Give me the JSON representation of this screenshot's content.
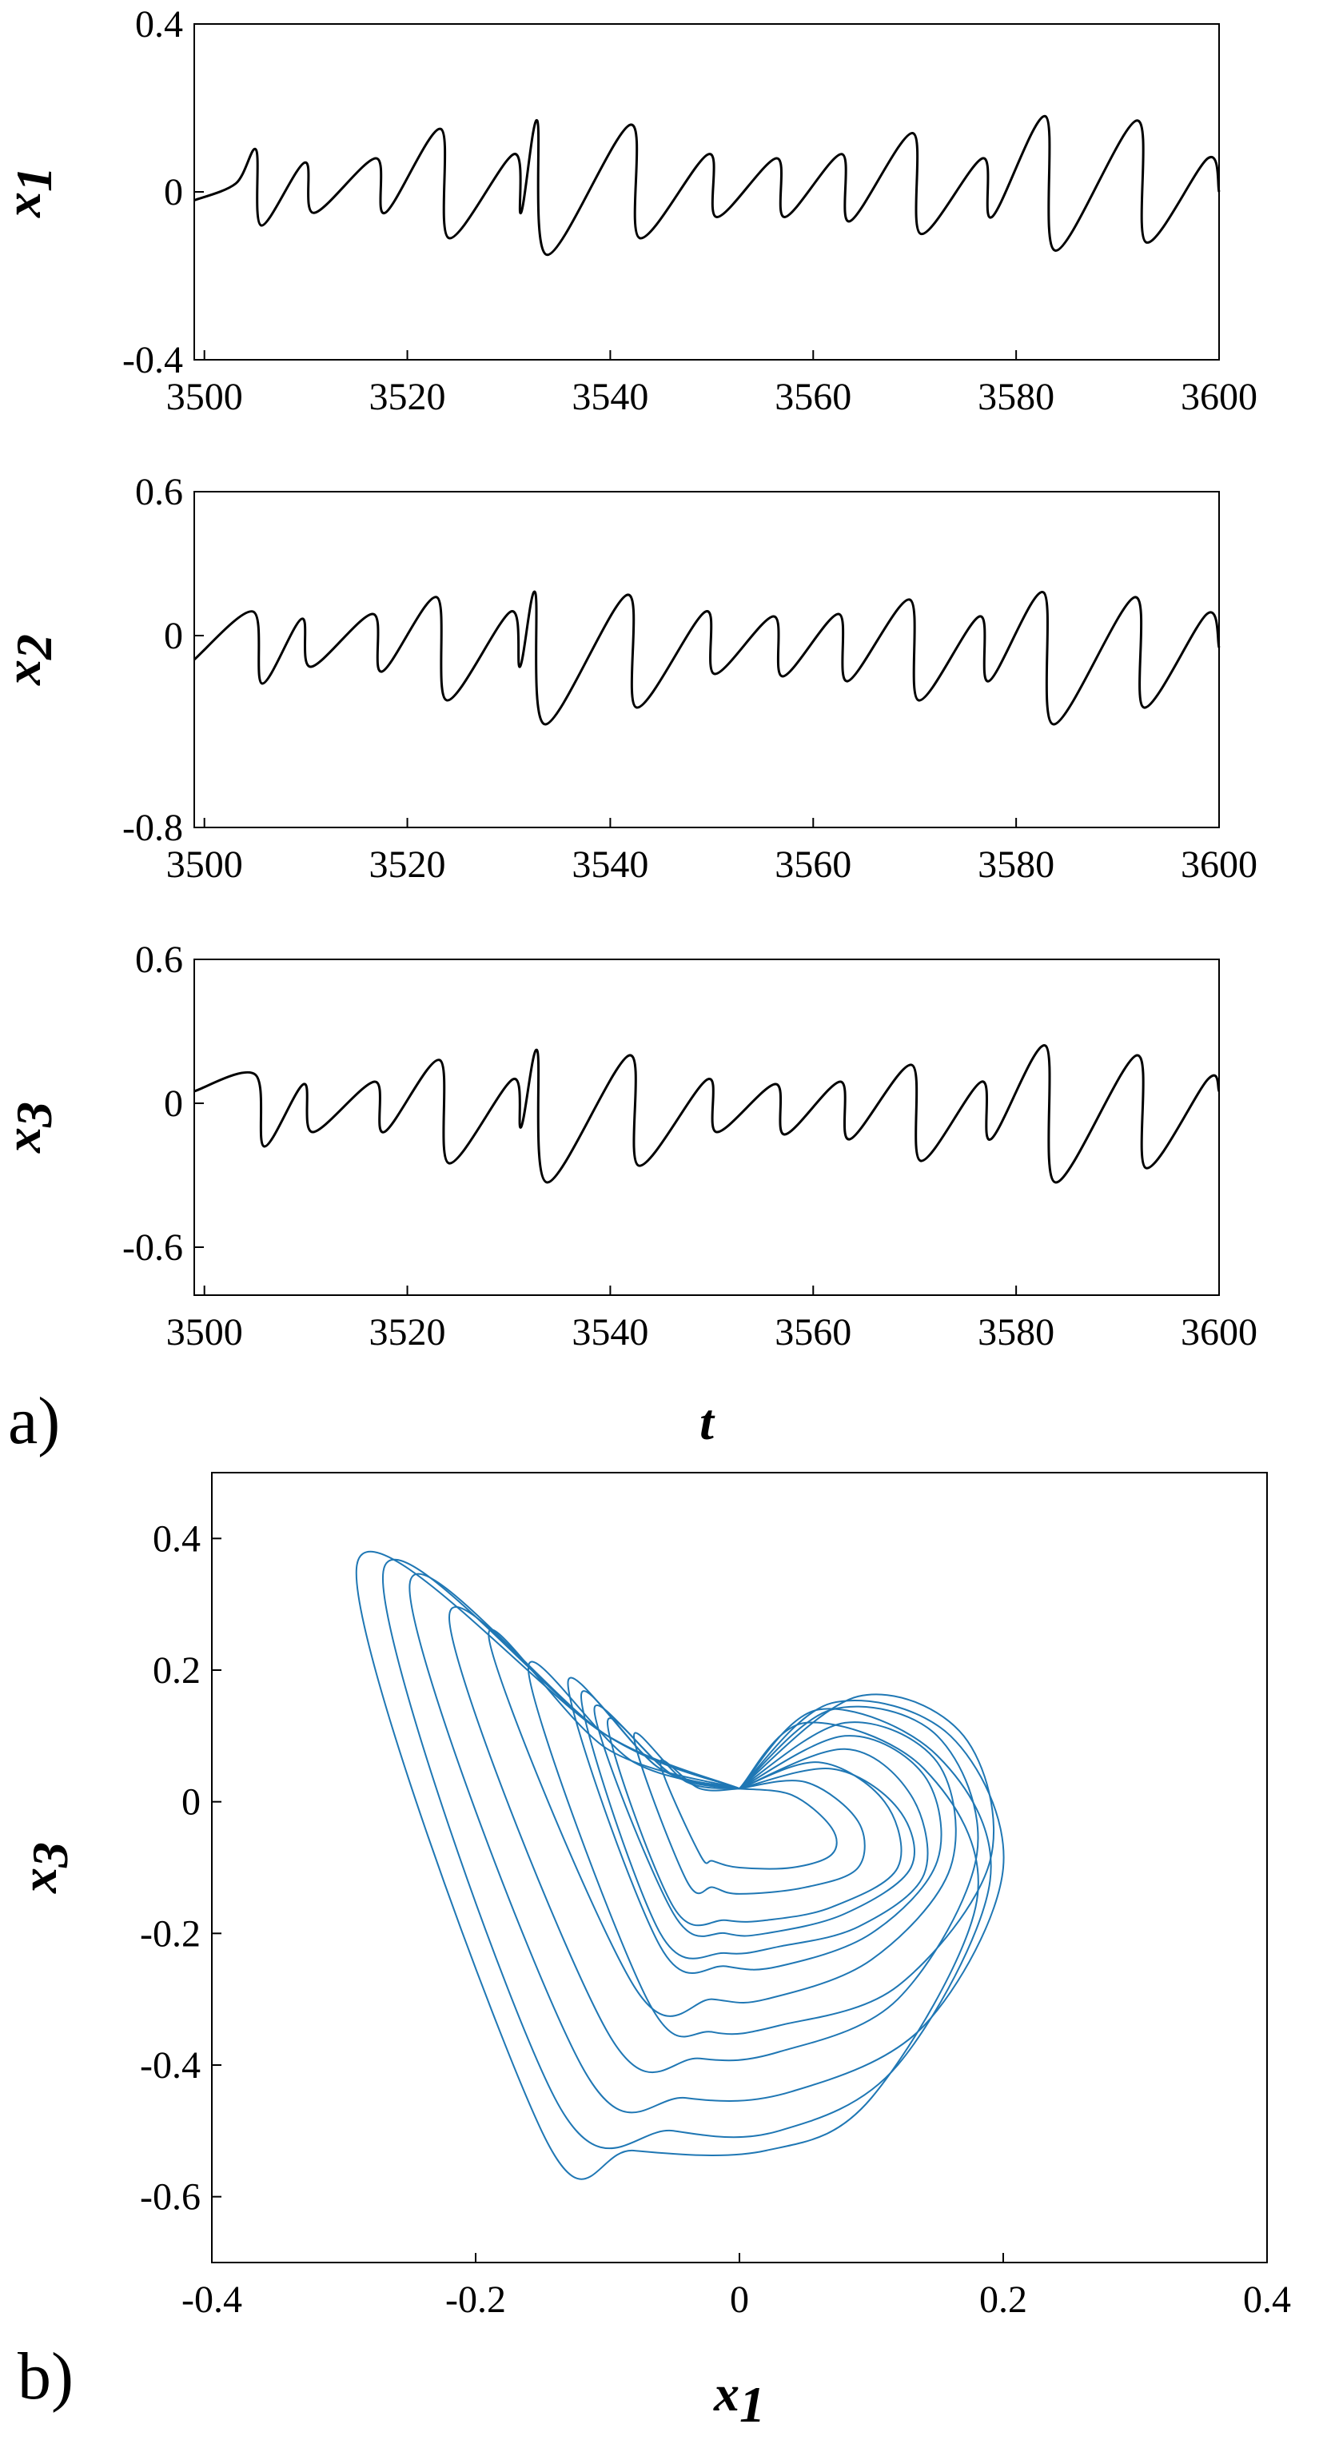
{
  "chart_data": [
    {
      "type": "line",
      "panel": "a)",
      "xlabel": "",
      "ylabel": "x",
      "ylabel_sub": "1",
      "xlim": [
        3499,
        3600
      ],
      "ylim": [
        -0.4,
        0.4
      ],
      "xticks": [
        3500,
        3520,
        3540,
        3560,
        3580,
        3600
      ],
      "yticks": [
        -0.4,
        0,
        0.4
      ],
      "ytick_labels": [
        "-0.4",
        "0",
        "0.4"
      ],
      "color": "#000000",
      "x": [
        3499,
        3503.1,
        3505.1,
        3505.6,
        3509.9,
        3510.8,
        3516.9,
        3517.8,
        3523.3,
        3524.1,
        3530.5,
        3531.2,
        3532.8,
        3533.8,
        3542.0,
        3542.9,
        3549.7,
        3550.5,
        3556.4,
        3557.2,
        3562.8,
        3563.6,
        3569.8,
        3570.6,
        3576.7,
        3577.6,
        3582.9,
        3583.9,
        3591.9,
        3592.8,
        3598.9,
        3600
      ],
      "y": [
        -0.02,
        0.02,
        0.1,
        -0.08,
        0.07,
        -0.05,
        0.08,
        -0.05,
        0.15,
        -0.11,
        0.09,
        -0.05,
        0.17,
        -0.15,
        0.16,
        -0.11,
        0.09,
        -0.06,
        0.08,
        -0.06,
        0.09,
        -0.07,
        0.14,
        -0.1,
        0.08,
        -0.06,
        0.18,
        -0.14,
        0.17,
        -0.12,
        0.08,
        0.0
      ]
    },
    {
      "type": "line",
      "panel": "",
      "xlabel": "",
      "ylabel": "x",
      "ylabel_sub": "2",
      "xlim": [
        3499,
        3600
      ],
      "ylim": [
        -0.8,
        0.6
      ],
      "xticks": [
        3500,
        3520,
        3540,
        3560,
        3580,
        3600
      ],
      "yticks": [
        -0.8,
        0,
        0.6
      ],
      "ytick_labels": [
        "-0.8",
        "0",
        "0.6"
      ],
      "color": "#000000",
      "x": [
        3499,
        3504.8,
        3505.7,
        3509.6,
        3510.5,
        3516.6,
        3517.5,
        3522.9,
        3523.9,
        3530.2,
        3531.1,
        3532.6,
        3533.6,
        3541.7,
        3542.6,
        3549.4,
        3550.3,
        3556.1,
        3557.0,
        3562.5,
        3563.4,
        3569.5,
        3570.4,
        3576.4,
        3577.3,
        3582.7,
        3583.7,
        3591.7,
        3592.6,
        3598.8,
        3600
      ],
      "y": [
        -0.1,
        0.1,
        -0.2,
        0.07,
        -0.13,
        0.09,
        -0.15,
        0.16,
        -0.27,
        0.1,
        -0.13,
        0.18,
        -0.37,
        0.17,
        -0.3,
        0.1,
        -0.16,
        0.08,
        -0.17,
        0.09,
        -0.19,
        0.15,
        -0.27,
        0.08,
        -0.19,
        0.18,
        -0.37,
        0.16,
        -0.3,
        0.09,
        -0.05
      ]
    },
    {
      "type": "line",
      "panel": "",
      "xlabel": "t",
      "ylabel": "x",
      "ylabel_sub": "3",
      "xlim": [
        3499,
        3600
      ],
      "ylim": [
        -0.8,
        0.6
      ],
      "xticks": [
        3500,
        3520,
        3540,
        3560,
        3580,
        3600
      ],
      "yticks": [
        -0.6,
        0,
        0.6
      ],
      "ytick_labels": [
        "-0.6",
        "0",
        "0.6"
      ],
      "color": "#000000",
      "x": [
        3499,
        3505.0,
        3505.9,
        3509.8,
        3510.7,
        3516.8,
        3517.7,
        3523.2,
        3524.1,
        3530.4,
        3531.2,
        3532.8,
        3533.8,
        3541.9,
        3542.8,
        3549.6,
        3550.5,
        3556.3,
        3557.2,
        3562.7,
        3563.6,
        3569.7,
        3570.6,
        3576.6,
        3577.5,
        3582.9,
        3583.9,
        3591.9,
        3592.8,
        3598.9,
        3600
      ],
      "y": [
        0.05,
        0.12,
        -0.18,
        0.08,
        -0.12,
        0.09,
        -0.12,
        0.18,
        -0.25,
        0.1,
        -0.1,
        0.22,
        -0.33,
        0.2,
        -0.26,
        0.1,
        -0.12,
        0.08,
        -0.13,
        0.09,
        -0.15,
        0.16,
        -0.24,
        0.09,
        -0.15,
        0.24,
        -0.33,
        0.2,
        -0.27,
        0.1,
        0.05
      ]
    },
    {
      "type": "line",
      "panel": "b)",
      "xlabel": "x",
      "xlabel_sub": "1",
      "ylabel": "x",
      "ylabel_sub": "3",
      "xlim": [
        -0.4,
        0.4
      ],
      "ylim": [
        -0.7,
        0.5
      ],
      "xticks": [
        -0.4,
        -0.2,
        0,
        0.2,
        0.4
      ],
      "xtick_labels": [
        "-0.4",
        "-0.2",
        "0",
        "0.2",
        "0.4"
      ],
      "yticks": [
        -0.6,
        -0.4,
        -0.2,
        0,
        0.2,
        0.4
      ],
      "ytick_labels": [
        "-0.6",
        "-0.4",
        "-0.2",
        "0",
        "0.2",
        "0.4"
      ],
      "color": "#1f77b4",
      "loops": [
        {
          "x": [
            0.0,
            0.05,
            0.14,
            0.18,
            0.1,
            0.02,
            -0.08,
            -0.15,
            -0.29,
            -0.1,
            0.0
          ],
          "y": [
            0.02,
            0.12,
            0.05,
            -0.15,
            -0.45,
            -0.53,
            -0.53,
            -0.5,
            0.36,
            0.1,
            0.02
          ]
        },
        {
          "x": [
            0.0,
            0.06,
            0.15,
            0.19,
            0.12,
            0.03,
            -0.05,
            -0.14,
            -0.27,
            -0.1,
            0.0
          ],
          "y": [
            0.02,
            0.14,
            0.07,
            -0.12,
            -0.4,
            -0.5,
            -0.5,
            -0.45,
            0.35,
            0.1,
            0.02
          ]
        },
        {
          "x": [
            0.0,
            0.07,
            0.16,
            0.2,
            0.14,
            0.04,
            -0.04,
            -0.12,
            -0.25,
            -0.1,
            0.0
          ],
          "y": [
            0.02,
            0.15,
            0.1,
            -0.1,
            -0.34,
            -0.44,
            -0.45,
            -0.4,
            0.33,
            0.1,
            0.02
          ]
        },
        {
          "x": [
            0.0,
            0.07,
            0.15,
            0.18,
            0.12,
            0.03,
            -0.03,
            -0.1,
            -0.22,
            -0.1,
            0.0
          ],
          "y": [
            0.02,
            0.14,
            0.1,
            -0.08,
            -0.3,
            -0.38,
            -0.39,
            -0.35,
            0.28,
            0.1,
            0.02
          ]
        },
        {
          "x": [
            0.0,
            0.08,
            0.15,
            0.16,
            0.1,
            0.02,
            -0.02,
            -0.08,
            -0.19,
            -0.1,
            0.0
          ],
          "y": [
            0.02,
            0.12,
            0.06,
            -0.1,
            -0.24,
            -0.3,
            -0.3,
            -0.28,
            0.25,
            0.08,
            0.02
          ]
        },
        {
          "x": [
            0.0,
            0.09,
            0.17,
            0.19,
            0.12,
            0.03,
            -0.02,
            -0.07,
            -0.16,
            -0.08,
            0.0
          ],
          "y": [
            0.02,
            0.16,
            0.1,
            -0.09,
            -0.28,
            -0.34,
            -0.35,
            -0.3,
            0.2,
            0.06,
            0.02
          ]
        },
        {
          "x": [
            0.0,
            0.08,
            0.14,
            0.15,
            0.1,
            0.03,
            -0.01,
            -0.06,
            -0.13,
            -0.06,
            0.0
          ],
          "y": [
            0.02,
            0.1,
            0.04,
            -0.09,
            -0.2,
            -0.25,
            -0.25,
            -0.22,
            0.18,
            0.05,
            0.02
          ]
        },
        {
          "x": [
            0.0,
            0.06,
            0.11,
            0.12,
            0.07,
            0.02,
            -0.01,
            -0.05,
            -0.1,
            -0.05,
            0.0
          ],
          "y": [
            0.02,
            0.06,
            0.0,
            -0.1,
            -0.16,
            -0.18,
            -0.18,
            -0.16,
            0.12,
            0.04,
            0.02
          ]
        },
        {
          "x": [
            0.0,
            0.08,
            0.13,
            0.14,
            0.09,
            0.03,
            -0.01,
            -0.06,
            -0.12,
            -0.06,
            0.0
          ],
          "y": [
            0.02,
            0.08,
            0.01,
            -0.11,
            -0.19,
            -0.22,
            -0.23,
            -0.2,
            0.16,
            0.05,
            0.02
          ]
        },
        {
          "x": [
            0.0,
            0.05,
            0.09,
            0.09,
            0.05,
            0.0,
            -0.02,
            -0.04,
            -0.08,
            -0.04,
            0.0
          ],
          "y": [
            0.02,
            0.03,
            -0.03,
            -0.1,
            -0.13,
            -0.14,
            -0.13,
            -0.12,
            0.1,
            0.03,
            0.02
          ]
        },
        {
          "x": [
            0.0,
            0.07,
            0.12,
            0.13,
            0.08,
            0.02,
            -0.01,
            -0.05,
            -0.11,
            -0.05,
            0.0
          ],
          "y": [
            0.02,
            0.05,
            -0.01,
            -0.1,
            -0.17,
            -0.2,
            -0.2,
            -0.17,
            0.14,
            0.04,
            0.02
          ]
        },
        {
          "x": [
            0.0,
            0.04,
            0.07,
            0.07,
            0.04,
            0.0,
            -0.02,
            -0.03,
            -0.06,
            -0.03,
            0.0
          ],
          "y": [
            0.02,
            0.01,
            -0.04,
            -0.08,
            -0.1,
            -0.1,
            -0.09,
            -0.08,
            0.06,
            0.02,
            0.02
          ]
        }
      ]
    }
  ]
}
